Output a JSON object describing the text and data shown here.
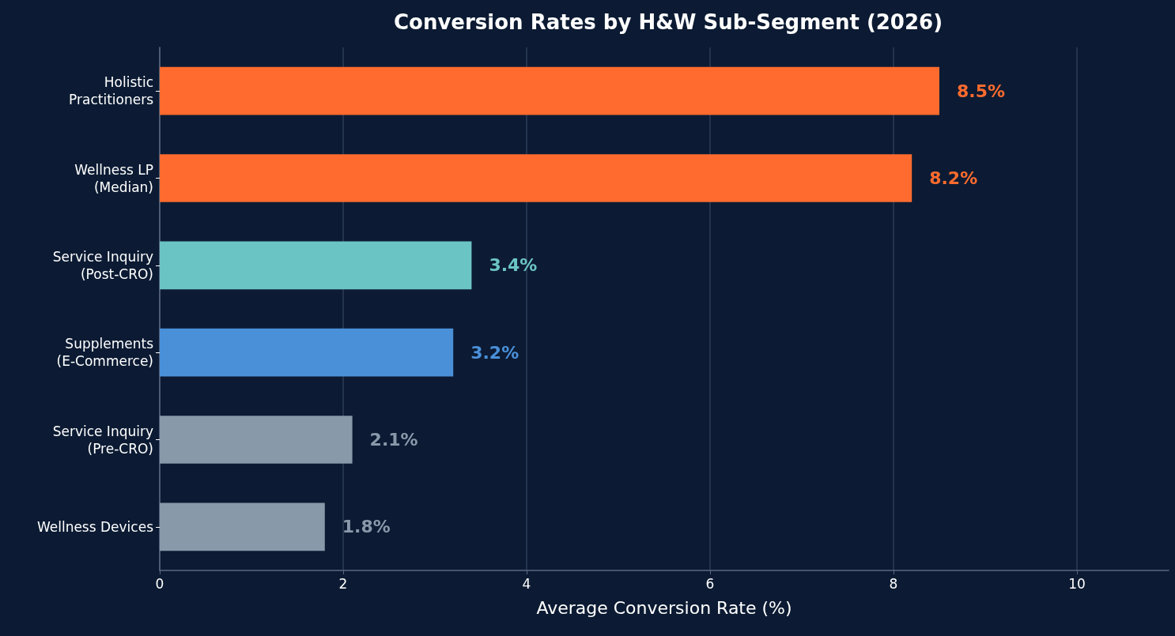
{
  "chart_data": {
    "type": "bar",
    "orientation": "horizontal",
    "title": "Conversion Rates by H&W Sub-Segment (2026)",
    "xlabel": "Average Conversion Rate (%)",
    "categories": [
      "Holistic\nPractitioners",
      "Wellness LP\n(Median)",
      "Service Inquiry\n(Post-CRO)",
      "Supplements\n(E-Commerce)",
      "Service Inquiry\n(Pre-CRO)",
      "Wellness Devices"
    ],
    "values": [
      8.5,
      8.2,
      3.4,
      3.2,
      2.1,
      1.8
    ],
    "colors": [
      "#ff6b2e",
      "#ff6b2e",
      "#6bc4c4",
      "#4a90d9",
      "#8899aa",
      "#8899aa"
    ],
    "value_labels": [
      "8.5%",
      "8.2%",
      "3.4%",
      "3.2%",
      "2.1%",
      "1.8%"
    ],
    "xlim": [
      0,
      11
    ],
    "xticks": [
      0,
      2,
      4,
      6,
      8,
      10
    ],
    "grid": "x"
  }
}
